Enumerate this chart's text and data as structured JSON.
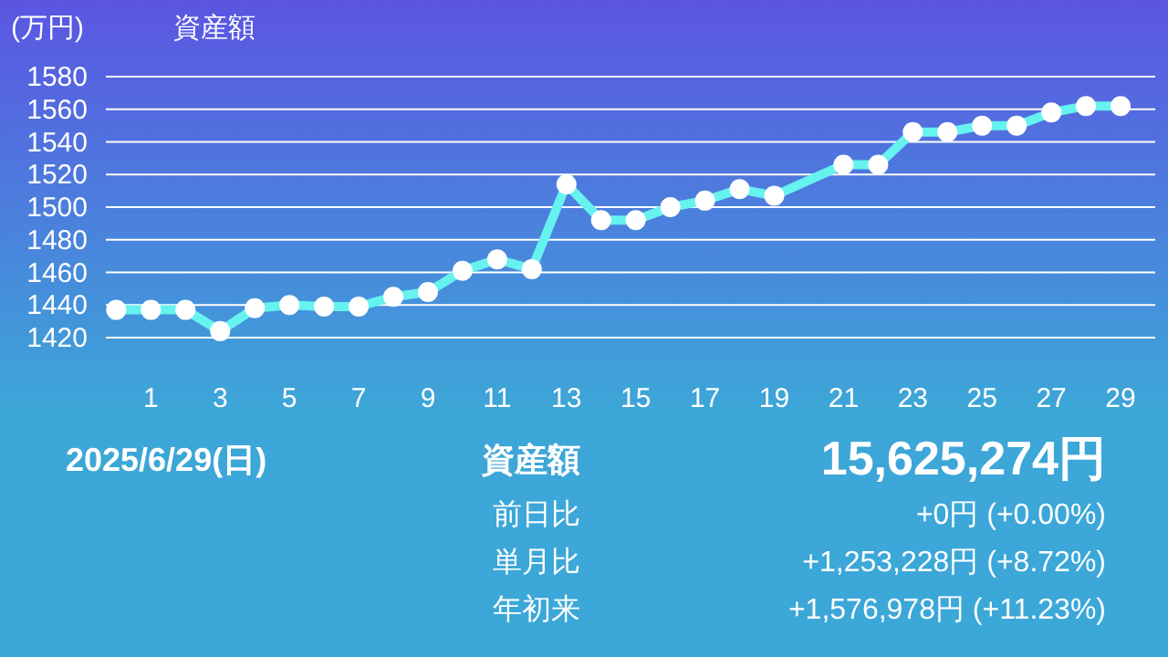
{
  "chart_data": {
    "type": "line",
    "title": "資産額",
    "ylabel": "(万円)",
    "x": [
      0,
      1,
      2,
      3,
      4,
      5,
      6,
      7,
      8,
      9,
      10,
      11,
      12,
      13,
      14,
      15,
      16,
      17,
      18,
      19,
      21,
      22,
      23,
      24,
      25,
      26,
      27,
      28,
      29
    ],
    "series": [
      {
        "color": "#66f2ee",
        "values": [
          1437,
          1437,
          1437,
          1424,
          1438,
          1440,
          1439,
          1439,
          1445,
          1448,
          1461,
          1468,
          1462,
          1514,
          1492,
          1492,
          1500,
          1504,
          1511,
          1507,
          1526,
          1526,
          1546,
          1546,
          1550,
          1550,
          1558,
          1562,
          1562
        ]
      }
    ],
    "xlim": [
      -0.3,
      30
    ],
    "xticks": [
      1,
      3,
      5,
      7,
      9,
      11,
      13,
      15,
      17,
      19,
      21,
      23,
      25,
      27,
      29
    ],
    "ylim": [
      1420,
      1580
    ],
    "yticks": [
      1420,
      1440,
      1460,
      1480,
      1500,
      1520,
      1540,
      1560,
      1580
    ],
    "grid": "y",
    "marker": "circle",
    "line_style": "solid",
    "annotations": [
      "2025/6/29(日)",
      "資産額",
      "15,625,274円",
      "前日比",
      "+0円 (+0.00%)",
      "単月比",
      "+1,253,228円 (+8.72%)",
      "年初来",
      "+1,576,978円 (+11.23%)"
    ]
  }
}
